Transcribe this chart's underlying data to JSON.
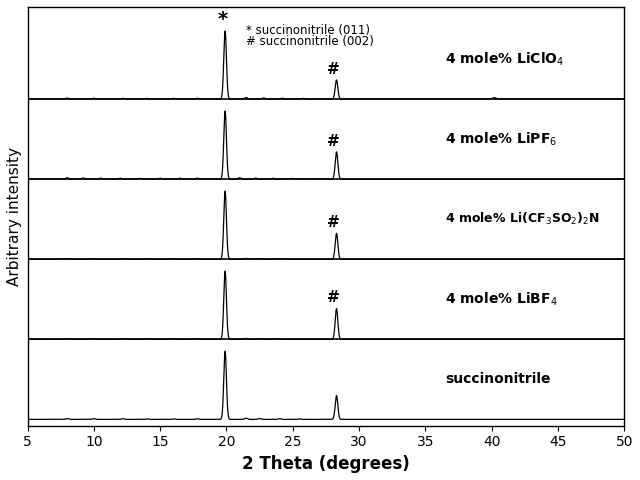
{
  "title": "",
  "xlabel": "2 Theta (degrees)",
  "ylabel": "Arbitrary intensity",
  "xlim": [
    5,
    50
  ],
  "x_ticks": [
    5,
    10,
    15,
    20,
    25,
    30,
    35,
    40,
    45,
    50
  ],
  "series_labels": [
    "succinonitrile",
    "4 mole% LiBF$_4$",
    "4 mole% Li(CF$_3$SO$_2$)$_2$N",
    "4 mole% LiPF$_6$",
    "4 mole% LiClO$_4$"
  ],
  "background_color": "#ffffff",
  "line_color": "#000000",
  "label_fontsize": 10,
  "axis_label_fontsize": 12
}
